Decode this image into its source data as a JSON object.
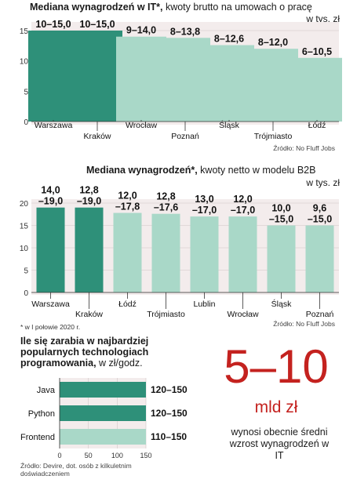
{
  "chart_data": [
    {
      "type": "bar",
      "title_bold": "Mediana wynagrodzeń  w IT*,",
      "title_rest": " kwoty brutto na umowach o pracę",
      "unit": "w tys. zł",
      "categories": [
        "Warszawa",
        "Kraków",
        "Wrocław",
        "Poznań",
        "Śląsk",
        "Trójmiasto",
        "Łódź"
      ],
      "values": [
        15,
        15,
        14,
        13.8,
        12.6,
        12,
        10.5
      ],
      "value_labels": [
        "10–15,0",
        "10–15,0",
        "9–14,0",
        "8–13,8",
        "8–12,6",
        "8–12,0",
        "6–10,5"
      ],
      "highlight": [
        true,
        true,
        false,
        false,
        false,
        false,
        false
      ],
      "ylim": [
        0,
        15
      ],
      "yticks": [
        0,
        5,
        10,
        15
      ],
      "source": "Źródło: No Fluff Jobs"
    },
    {
      "type": "bar",
      "title_bold": "Mediana wynagrodzeń*,",
      "title_rest": " kwoty netto w modelu B2B",
      "unit": "w tys. zł",
      "categories": [
        "Warszawa",
        "Kraków",
        "Łódź",
        "Trójmiasto",
        "Lublin",
        "Wrocław",
        "Śląsk",
        "Poznań"
      ],
      "values": [
        19,
        19,
        17.8,
        17.6,
        17,
        17,
        15,
        15
      ],
      "value_labels_top": [
        "14,0",
        "12,8",
        "12,0",
        "12,8",
        "13,0",
        "12,0",
        "10,0",
        "9,6"
      ],
      "value_labels_bottom": [
        "–19,0",
        "–19,0",
        "–17,8",
        "–17,6",
        "–17,0",
        "–17,0",
        "–15,0",
        "–15,0"
      ],
      "highlight": [
        true,
        true,
        false,
        false,
        false,
        false,
        false,
        false
      ],
      "ylim": [
        0,
        20
      ],
      "yticks": [
        0,
        5,
        10,
        15,
        20
      ],
      "source": "Źródło: No Fluff Jobs"
    },
    {
      "type": "bar",
      "orientation": "horizontal",
      "title_bold": "Ile się zarabia w najbardziej popularnych technologiach programowania,",
      "title_rest": " w zł/godz.",
      "categories": [
        "Java",
        "Python",
        "Frontend"
      ],
      "values": [
        150,
        150,
        150
      ],
      "value_labels": [
        "120–150",
        "120–150",
        "110–150"
      ],
      "highlight": [
        true,
        true,
        false
      ],
      "xlim": [
        0,
        150
      ],
      "xticks": [
        0,
        50,
        100,
        150
      ],
      "source": "Źródło: Devire, dot. osób z kilkuletnim doświadczeniem"
    }
  ],
  "footnote": "* w I połowie 2020 r.",
  "headline": {
    "number": "5–10",
    "unit": "mld zł",
    "text": "wynosi obecnie średni wzrost wynagrodzeń w IT"
  },
  "colors": {
    "highlight": "#2e9079",
    "light": "#a9d8c8",
    "panel": "#f3ecec",
    "accent": "#c4221f"
  }
}
